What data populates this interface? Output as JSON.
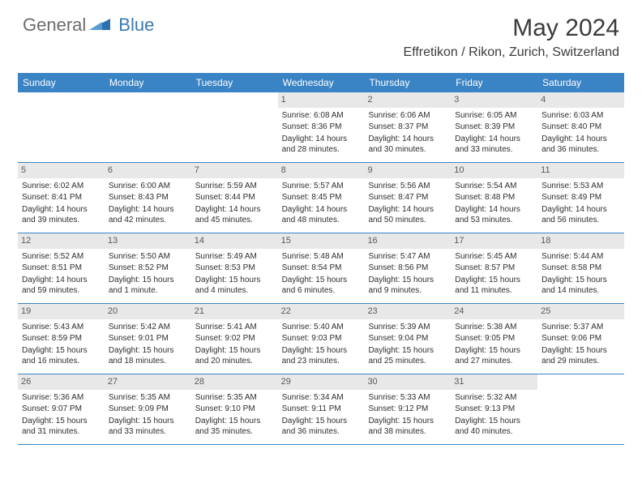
{
  "brand": {
    "part1": "General",
    "part2": "Blue"
  },
  "title": "May 2024",
  "location": "Effretikon / Rikon, Zurich, Switzerland",
  "colors": {
    "header_bg": "#3a83c4",
    "header_text": "#ffffff",
    "daynum_bg": "#e8e8e8",
    "border": "#3a83c4",
    "body_text": "#2e2e2e",
    "title_text": "#3b3b3b"
  },
  "day_names": [
    "Sunday",
    "Monday",
    "Tuesday",
    "Wednesday",
    "Thursday",
    "Friday",
    "Saturday"
  ],
  "weeks": [
    [
      {
        "num": "",
        "sunrise": "",
        "sunset": "",
        "daylight": ""
      },
      {
        "num": "",
        "sunrise": "",
        "sunset": "",
        "daylight": ""
      },
      {
        "num": "",
        "sunrise": "",
        "sunset": "",
        "daylight": ""
      },
      {
        "num": "1",
        "sunrise": "Sunrise: 6:08 AM",
        "sunset": "Sunset: 8:36 PM",
        "daylight": "Daylight: 14 hours and 28 minutes."
      },
      {
        "num": "2",
        "sunrise": "Sunrise: 6:06 AM",
        "sunset": "Sunset: 8:37 PM",
        "daylight": "Daylight: 14 hours and 30 minutes."
      },
      {
        "num": "3",
        "sunrise": "Sunrise: 6:05 AM",
        "sunset": "Sunset: 8:39 PM",
        "daylight": "Daylight: 14 hours and 33 minutes."
      },
      {
        "num": "4",
        "sunrise": "Sunrise: 6:03 AM",
        "sunset": "Sunset: 8:40 PM",
        "daylight": "Daylight: 14 hours and 36 minutes."
      }
    ],
    [
      {
        "num": "5",
        "sunrise": "Sunrise: 6:02 AM",
        "sunset": "Sunset: 8:41 PM",
        "daylight": "Daylight: 14 hours and 39 minutes."
      },
      {
        "num": "6",
        "sunrise": "Sunrise: 6:00 AM",
        "sunset": "Sunset: 8:43 PM",
        "daylight": "Daylight: 14 hours and 42 minutes."
      },
      {
        "num": "7",
        "sunrise": "Sunrise: 5:59 AM",
        "sunset": "Sunset: 8:44 PM",
        "daylight": "Daylight: 14 hours and 45 minutes."
      },
      {
        "num": "8",
        "sunrise": "Sunrise: 5:57 AM",
        "sunset": "Sunset: 8:45 PM",
        "daylight": "Daylight: 14 hours and 48 minutes."
      },
      {
        "num": "9",
        "sunrise": "Sunrise: 5:56 AM",
        "sunset": "Sunset: 8:47 PM",
        "daylight": "Daylight: 14 hours and 50 minutes."
      },
      {
        "num": "10",
        "sunrise": "Sunrise: 5:54 AM",
        "sunset": "Sunset: 8:48 PM",
        "daylight": "Daylight: 14 hours and 53 minutes."
      },
      {
        "num": "11",
        "sunrise": "Sunrise: 5:53 AM",
        "sunset": "Sunset: 8:49 PM",
        "daylight": "Daylight: 14 hours and 56 minutes."
      }
    ],
    [
      {
        "num": "12",
        "sunrise": "Sunrise: 5:52 AM",
        "sunset": "Sunset: 8:51 PM",
        "daylight": "Daylight: 14 hours and 59 minutes."
      },
      {
        "num": "13",
        "sunrise": "Sunrise: 5:50 AM",
        "sunset": "Sunset: 8:52 PM",
        "daylight": "Daylight: 15 hours and 1 minute."
      },
      {
        "num": "14",
        "sunrise": "Sunrise: 5:49 AM",
        "sunset": "Sunset: 8:53 PM",
        "daylight": "Daylight: 15 hours and 4 minutes."
      },
      {
        "num": "15",
        "sunrise": "Sunrise: 5:48 AM",
        "sunset": "Sunset: 8:54 PM",
        "daylight": "Daylight: 15 hours and 6 minutes."
      },
      {
        "num": "16",
        "sunrise": "Sunrise: 5:47 AM",
        "sunset": "Sunset: 8:56 PM",
        "daylight": "Daylight: 15 hours and 9 minutes."
      },
      {
        "num": "17",
        "sunrise": "Sunrise: 5:45 AM",
        "sunset": "Sunset: 8:57 PM",
        "daylight": "Daylight: 15 hours and 11 minutes."
      },
      {
        "num": "18",
        "sunrise": "Sunrise: 5:44 AM",
        "sunset": "Sunset: 8:58 PM",
        "daylight": "Daylight: 15 hours and 14 minutes."
      }
    ],
    [
      {
        "num": "19",
        "sunrise": "Sunrise: 5:43 AM",
        "sunset": "Sunset: 8:59 PM",
        "daylight": "Daylight: 15 hours and 16 minutes."
      },
      {
        "num": "20",
        "sunrise": "Sunrise: 5:42 AM",
        "sunset": "Sunset: 9:01 PM",
        "daylight": "Daylight: 15 hours and 18 minutes."
      },
      {
        "num": "21",
        "sunrise": "Sunrise: 5:41 AM",
        "sunset": "Sunset: 9:02 PM",
        "daylight": "Daylight: 15 hours and 20 minutes."
      },
      {
        "num": "22",
        "sunrise": "Sunrise: 5:40 AM",
        "sunset": "Sunset: 9:03 PM",
        "daylight": "Daylight: 15 hours and 23 minutes."
      },
      {
        "num": "23",
        "sunrise": "Sunrise: 5:39 AM",
        "sunset": "Sunset: 9:04 PM",
        "daylight": "Daylight: 15 hours and 25 minutes."
      },
      {
        "num": "24",
        "sunrise": "Sunrise: 5:38 AM",
        "sunset": "Sunset: 9:05 PM",
        "daylight": "Daylight: 15 hours and 27 minutes."
      },
      {
        "num": "25",
        "sunrise": "Sunrise: 5:37 AM",
        "sunset": "Sunset: 9:06 PM",
        "daylight": "Daylight: 15 hours and 29 minutes."
      }
    ],
    [
      {
        "num": "26",
        "sunrise": "Sunrise: 5:36 AM",
        "sunset": "Sunset: 9:07 PM",
        "daylight": "Daylight: 15 hours and 31 minutes."
      },
      {
        "num": "27",
        "sunrise": "Sunrise: 5:35 AM",
        "sunset": "Sunset: 9:09 PM",
        "daylight": "Daylight: 15 hours and 33 minutes."
      },
      {
        "num": "28",
        "sunrise": "Sunrise: 5:35 AM",
        "sunset": "Sunset: 9:10 PM",
        "daylight": "Daylight: 15 hours and 35 minutes."
      },
      {
        "num": "29",
        "sunrise": "Sunrise: 5:34 AM",
        "sunset": "Sunset: 9:11 PM",
        "daylight": "Daylight: 15 hours and 36 minutes."
      },
      {
        "num": "30",
        "sunrise": "Sunrise: 5:33 AM",
        "sunset": "Sunset: 9:12 PM",
        "daylight": "Daylight: 15 hours and 38 minutes."
      },
      {
        "num": "31",
        "sunrise": "Sunrise: 5:32 AM",
        "sunset": "Sunset: 9:13 PM",
        "daylight": "Daylight: 15 hours and 40 minutes."
      },
      {
        "num": "",
        "sunrise": "",
        "sunset": "",
        "daylight": ""
      }
    ]
  ]
}
